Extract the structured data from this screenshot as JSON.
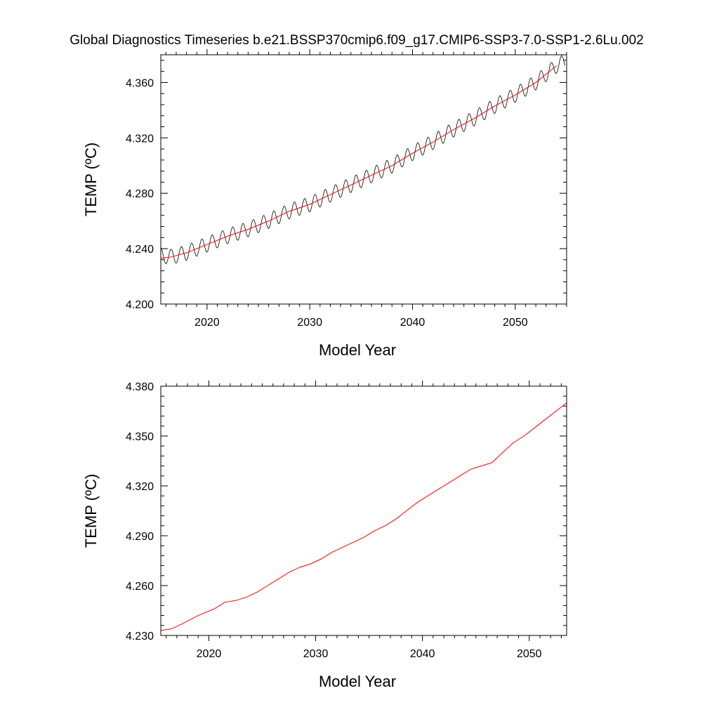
{
  "figure": {
    "title": "Global Diagnostics Timeseries b.e21.BSSP370cmip6.f09_g17.CMIP6-SSP3-7.0-SSP1-2.6Lu.002"
  },
  "chart_data": [
    {
      "type": "line",
      "xlabel": "Model Year",
      "ylabel": "TEMP (ºC)",
      "xlim": [
        2015.5,
        2055
      ],
      "ylim": [
        4.2,
        4.38
      ],
      "xticks": [
        2020,
        2030,
        2040,
        2050
      ],
      "xtick_labels": [
        "2020",
        "2030",
        "2040",
        "2050"
      ],
      "yticks": [
        4.2,
        4.24,
        4.28,
        4.32,
        4.36
      ],
      "ytick_labels": [
        "4.200",
        "4.240",
        "4.280",
        "4.320",
        "4.360"
      ],
      "grid": false,
      "legend": "none",
      "series": [
        {
          "style": "monthly-oscillating",
          "color": "#000000",
          "x_start": 2015.5,
          "x_end": 2054.8,
          "seasonal_amplitude": 0.0055,
          "trend_x": [
            2015.5,
            2016.5,
            2018,
            2020,
            2022,
            2024,
            2026,
            2028,
            2030,
            2032,
            2034,
            2036,
            2038,
            2040,
            2042,
            2044,
            2046,
            2048,
            2050,
            2052,
            2054,
            2054.8
          ],
          "trend_y": [
            4.235,
            4.234,
            4.237,
            4.243,
            4.249,
            4.254,
            4.26,
            4.267,
            4.272,
            4.279,
            4.286,
            4.293,
            4.3,
            4.309,
            4.317,
            4.326,
            4.334,
            4.343,
            4.351,
            4.36,
            4.372,
            4.375
          ]
        },
        {
          "style": "smoothed",
          "color": "#ff0000",
          "x": [
            2015.5,
            2016.5,
            2018,
            2020,
            2022,
            2024,
            2026,
            2028,
            2030,
            2032,
            2034,
            2036,
            2038,
            2040,
            2042,
            2044,
            2046,
            2048,
            2050,
            2052,
            2054
          ],
          "y": [
            4.233,
            4.234,
            4.237,
            4.243,
            4.249,
            4.254,
            4.26,
            4.267,
            4.272,
            4.279,
            4.286,
            4.293,
            4.3,
            4.309,
            4.317,
            4.326,
            4.334,
            4.343,
            4.351,
            4.36,
            4.372
          ]
        }
      ]
    },
    {
      "type": "line",
      "xlabel": "Model Year",
      "ylabel": "TEMP (ºC)",
      "xlim": [
        2015.5,
        2053.5
      ],
      "ylim": [
        4.23,
        4.38
      ],
      "xticks": [
        2020,
        2030,
        2040,
        2050
      ],
      "xtick_labels": [
        "2020",
        "2030",
        "2040",
        "2050"
      ],
      "yticks": [
        4.23,
        4.26,
        4.29,
        4.32,
        4.35,
        4.38
      ],
      "ytick_labels": [
        "4.230",
        "4.260",
        "4.290",
        "4.320",
        "4.350",
        "4.380"
      ],
      "grid": false,
      "legend": "none",
      "series": [
        {
          "style": "smoothed",
          "color": "#ff0000",
          "x": [
            2015.5,
            2016.5,
            2017.5,
            2019,
            2020.5,
            2021.5,
            2022.5,
            2023.5,
            2024.5,
            2025.5,
            2026.5,
            2027.5,
            2028.5,
            2029.5,
            2030.5,
            2031.5,
            2032.5,
            2033.5,
            2034.5,
            2035.5,
            2036.5,
            2037.5,
            2038.5,
            2039.5,
            2040.5,
            2041.5,
            2042.5,
            2043.5,
            2044.5,
            2045.5,
            2046.5,
            2047.5,
            2048.5,
            2049.5,
            2050.5,
            2051.5,
            2052.5,
            2053.5
          ],
          "y": [
            4.233,
            4.234,
            4.237,
            4.242,
            4.246,
            4.25,
            4.251,
            4.253,
            4.256,
            4.26,
            4.264,
            4.268,
            4.271,
            4.273,
            4.276,
            4.28,
            4.283,
            4.286,
            4.289,
            4.293,
            4.296,
            4.3,
            4.305,
            4.31,
            4.314,
            4.318,
            4.322,
            4.326,
            4.33,
            4.332,
            4.334,
            4.34,
            4.346,
            4.35,
            4.355,
            4.36,
            4.365,
            4.37
          ]
        }
      ]
    }
  ]
}
